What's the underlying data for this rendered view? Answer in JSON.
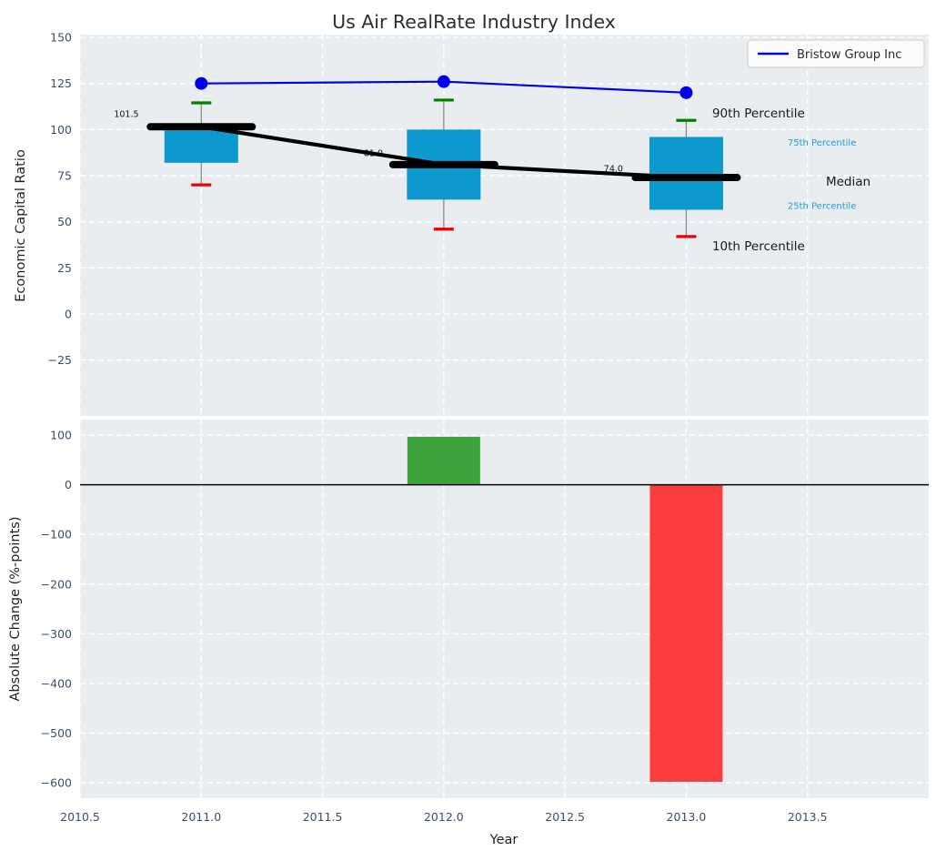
{
  "title": "Us Air RealRate Industry Index",
  "chart_data": [
    {
      "type": "boxplot-line",
      "title": "Us Air RealRate Industry Index",
      "ylabel": "Economic Capital Ratio",
      "xlim": [
        2010.5,
        2014.0
      ],
      "ylim": [
        -55.3,
        151.5
      ],
      "grid": "white dashed, on",
      "legend_position": "upper right",
      "legend": {
        "label": "Bristow Group Inc",
        "line_color": "#0000ee"
      },
      "yticks": [
        {
          "v": 150,
          "label": "150"
        },
        {
          "v": 125,
          "label": "125"
        },
        {
          "v": 100,
          "label": "100"
        },
        {
          "v": 75,
          "label": "75"
        },
        {
          "v": 50,
          "label": "50"
        },
        {
          "v": 25,
          "label": "25"
        },
        {
          "v": 0,
          "label": "0"
        },
        {
          "v": -25,
          "label": "−25"
        }
      ],
      "xticks": [
        {
          "v": 2010.5,
          "label": "2010.5"
        },
        {
          "v": 2011.0,
          "label": "2011.0"
        },
        {
          "v": 2011.5,
          "label": "2011.5"
        },
        {
          "v": 2012.0,
          "label": "2012.0"
        },
        {
          "v": 2012.5,
          "label": "2012.5"
        },
        {
          "v": 2013.0,
          "label": "2013.0"
        },
        {
          "v": 2013.5,
          "label": "2013.5"
        }
      ],
      "series": [
        {
          "name": "Bristow Group Inc",
          "type": "line+markers",
          "color": "#0000ee",
          "x": [
            2011,
            2012,
            2013
          ],
          "values": [
            125,
            126,
            120
          ]
        },
        {
          "name": "Median",
          "type": "thick-line",
          "color": "#000000",
          "x": [
            2011,
            2012,
            2013
          ],
          "values": [
            101.5,
            81.0,
            74.0
          ],
          "point_labels": [
            {
              "text": "101.5",
              "x": 2010.64,
              "y": 108.5
            },
            {
              "text": "81.0",
              "x": 2011.67,
              "y": 87.4
            },
            {
              "text": "74.0",
              "x": 2012.66,
              "y": 78.9
            }
          ]
        }
      ],
      "boxes": {
        "fill": "#0c99cd",
        "whisker_color": "#8a8a8a",
        "p90_cap_color": "#008000",
        "p10_cap_color": "#ee0000",
        "stats": [
          {
            "x": 2011,
            "p10": 70,
            "p25": 82,
            "median": 101.5,
            "p75": 99.5,
            "p90": 114.5
          },
          {
            "x": 2012,
            "p10": 46,
            "p25": 62,
            "median": 81.0,
            "p75": 100,
            "p90": 116
          },
          {
            "x": 2013,
            "p10": 42,
            "p25": 56.5,
            "median": 74.0,
            "p75": 96,
            "p90": 105
          }
        ]
      },
      "annotations": [
        {
          "text": "90th Percentile",
          "x": 2013.107,
          "y": 109,
          "size": "large",
          "color": "#1a1a1a"
        },
        {
          "text": "75th Percentile",
          "x": 2013.418,
          "y": 93,
          "size": "small",
          "color": "#1b9fd2"
        },
        {
          "text": "Median",
          "x": 2013.576,
          "y": 72,
          "size": "large",
          "color": "#1a1a1a"
        },
        {
          "text": "25th Percentile",
          "x": 2013.418,
          "y": 58.7,
          "size": "small",
          "color": "#1b9fd2"
        },
        {
          "text": "10th Percentile",
          "x": 2013.107,
          "y": 37,
          "size": "large",
          "color": "#1a1a1a"
        }
      ]
    },
    {
      "type": "bar",
      "ylabel": "Absolute Change (%-points)",
      "xlabel": "Year",
      "xlim": [
        2010.5,
        2014.0
      ],
      "ylim": [
        -631,
        131.2
      ],
      "grid": "white dashed, on",
      "zero_line_color": "#000000",
      "bar_width": 0.3,
      "yticks": [
        {
          "v": 100,
          "label": "100"
        },
        {
          "v": 0,
          "label": "0"
        },
        {
          "v": -100,
          "label": "−100"
        },
        {
          "v": -200,
          "label": "−200"
        },
        {
          "v": -300,
          "label": "−300"
        },
        {
          "v": -400,
          "label": "−400"
        },
        {
          "v": -500,
          "label": "−500"
        },
        {
          "v": -600,
          "label": "−600"
        }
      ],
      "bars": [
        {
          "x": 2012,
          "value": 96.5,
          "color": "#3da43d"
        },
        {
          "x": 2013,
          "value": -598,
          "color": "#fb3d3d"
        }
      ]
    }
  ]
}
